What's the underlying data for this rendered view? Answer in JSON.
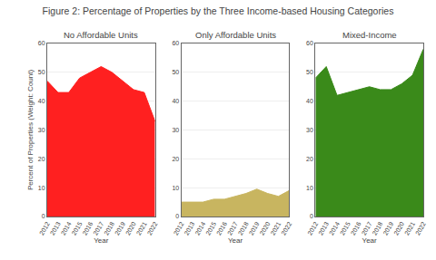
{
  "title": "Figure 2: Percentage of Properties by the Three Income-based Housing Categories",
  "chart_data": [
    {
      "type": "area",
      "title": "No Affordable Units",
      "x": [
        2012,
        2013,
        2014,
        2015,
        2016,
        2017,
        2018,
        2019,
        2020,
        2021,
        2022
      ],
      "values": [
        47,
        43,
        43,
        48,
        50,
        52,
        50,
        47,
        44,
        43,
        33
      ],
      "color": "#ff2020",
      "xlabel": "Year",
      "ylabel": "Percent of Properties (Weight: Count)",
      "xlim": [
        2012,
        2022
      ],
      "xticks": [
        2012,
        2013,
        2014,
        2015,
        2016,
        2017,
        2018,
        2019,
        2020,
        2021,
        2022
      ],
      "ylim": [
        0,
        60
      ],
      "yticks": [
        0,
        10,
        20,
        30,
        40,
        50,
        60
      ],
      "grid": "y"
    },
    {
      "type": "area",
      "title": "Only Affordable Units",
      "x": [
        2012,
        2013,
        2014,
        2015,
        2016,
        2017,
        2018,
        2019,
        2020,
        2021,
        2022
      ],
      "values": [
        5,
        5,
        5,
        6,
        6,
        7,
        8,
        9.5,
        8,
        7,
        9
      ],
      "color": "#c8b560",
      "xlabel": "Year",
      "xlim": [
        2012,
        2022
      ],
      "xticks": [
        2012,
        2013,
        2014,
        2015,
        2016,
        2017,
        2018,
        2019,
        2020,
        2021,
        2022
      ],
      "ylim": [
        0,
        60
      ],
      "yticks": [
        0,
        10,
        20,
        30,
        40,
        50,
        60
      ],
      "grid": "y"
    },
    {
      "type": "area",
      "title": "Mixed-Income",
      "x": [
        2012,
        2013,
        2014,
        2015,
        2016,
        2017,
        2018,
        2019,
        2020,
        2021,
        2022
      ],
      "values": [
        48,
        52,
        42,
        43,
        44,
        45,
        44,
        44,
        46,
        49,
        58
      ],
      "color": "#3a8a1a",
      "xlabel": "Year",
      "xlim": [
        2012,
        2022
      ],
      "xticks": [
        2012,
        2013,
        2014,
        2015,
        2016,
        2017,
        2018,
        2019,
        2020,
        2021,
        2022
      ],
      "ylim": [
        0,
        60
      ],
      "yticks": [
        0,
        10,
        20,
        30,
        40,
        50,
        60
      ],
      "grid": "y"
    }
  ]
}
